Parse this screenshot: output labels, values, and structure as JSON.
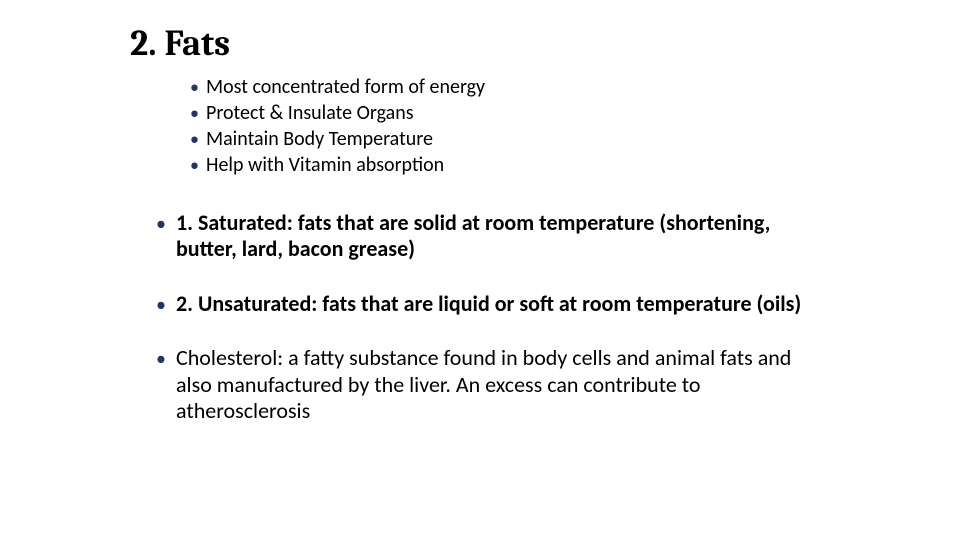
{
  "colors": {
    "background": "#ffffff",
    "text": "#000000",
    "bullet": "#1f3864"
  },
  "typography": {
    "title_font": "Cambria",
    "body_font": "Calibri",
    "title_fontsize": 36,
    "list1_fontsize": 20,
    "list2_fontsize": 22
  },
  "title": "2. Fats",
  "list1": {
    "items": [
      "Most concentrated form of energy",
      "Protect & Insulate Organs",
      "Maintain Body Temperature",
      "Help with Vitamin absorption"
    ]
  },
  "list2": {
    "items": [
      {
        "bold": true,
        "text": "1. Saturated: fats that are solid at room temperature (shortening, butter, lard, bacon grease)"
      },
      {
        "bold": true,
        "text": "2. Unsaturated: fats that are liquid or soft at room temperature (oils)"
      },
      {
        "bold": false,
        "text": "Cholesterol: a fatty substance found in body cells and animal fats and also manufactured by the liver. An excess can contribute to atherosclerosis"
      }
    ]
  }
}
